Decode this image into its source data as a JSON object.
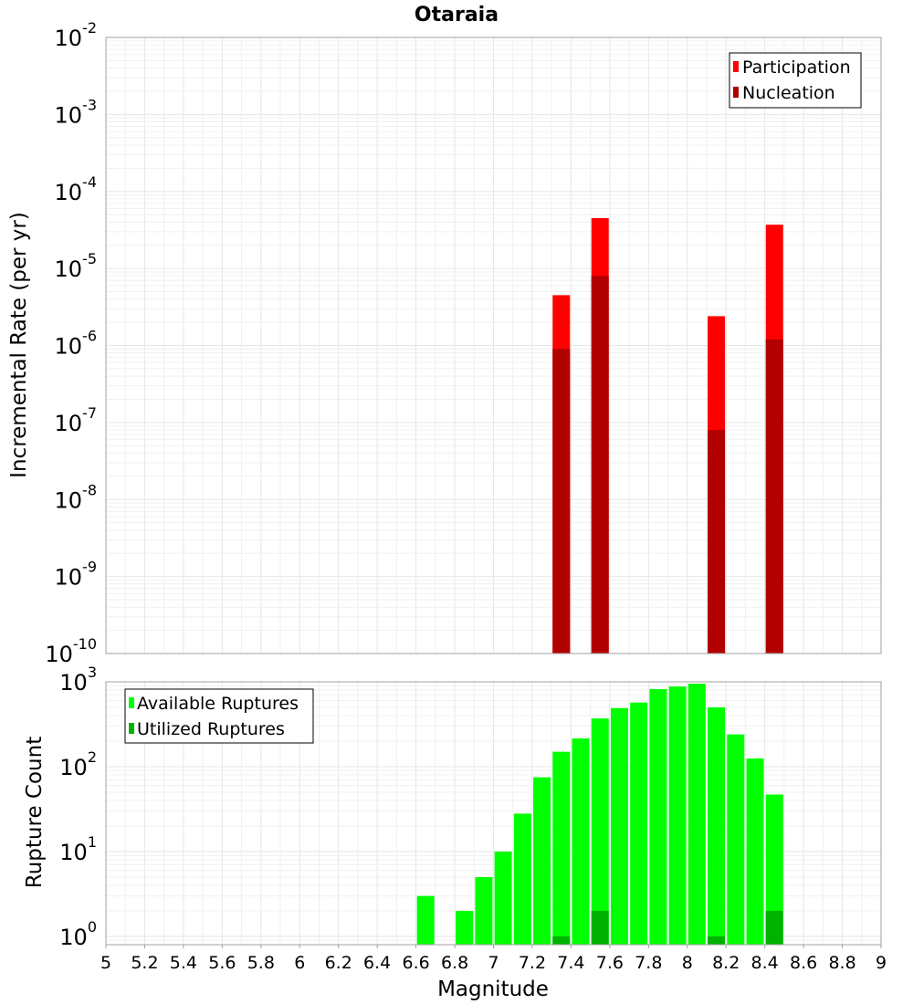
{
  "chart_data": [
    {
      "type": "bar",
      "title": "Otaraia",
      "ylabel": "Incremental Rate (per yr)",
      "xlabel": "",
      "yscale": "log",
      "ylim": [
        1e-10,
        0.01
      ],
      "xlim": [
        5,
        9
      ],
      "y_ticks": [
        {
          "base": "10",
          "exp": "-10"
        },
        {
          "base": "10",
          "exp": "-9"
        },
        {
          "base": "10",
          "exp": "-8"
        },
        {
          "base": "10",
          "exp": "-7"
        },
        {
          "base": "10",
          "exp": "-6"
        },
        {
          "base": "10",
          "exp": "-5"
        },
        {
          "base": "10",
          "exp": "-4"
        },
        {
          "base": "10",
          "exp": "-3"
        },
        {
          "base": "10",
          "exp": "-2"
        }
      ],
      "legend_position": "top-right",
      "grid": true,
      "series": [
        {
          "name": "Participation",
          "color": "#ff0000",
          "points": [
            {
              "x": 7.35,
              "y": 4.5e-06
            },
            {
              "x": 7.55,
              "y": 4.5e-05
            },
            {
              "x": 8.15,
              "y": 2.4e-06
            },
            {
              "x": 8.45,
              "y": 3.7e-05
            }
          ]
        },
        {
          "name": "Nucleation",
          "color": "#b20000",
          "points": [
            {
              "x": 7.35,
              "y": 9e-07
            },
            {
              "x": 7.55,
              "y": 8e-06
            },
            {
              "x": 8.15,
              "y": 8e-08
            },
            {
              "x": 8.45,
              "y": 1.2e-06
            }
          ]
        }
      ]
    },
    {
      "type": "bar",
      "ylabel": "Rupture Count",
      "xlabel": "Magnitude",
      "yscale": "log",
      "ylim": [
        0.8,
        1000
      ],
      "xlim": [
        5,
        9
      ],
      "x_ticks": [
        "5",
        "5.2",
        "5.4",
        "5.6",
        "5.8",
        "6",
        "6.2",
        "6.4",
        "6.6",
        "6.8",
        "7",
        "7.2",
        "7.4",
        "7.6",
        "7.8",
        "8",
        "8.2",
        "8.4",
        "8.6",
        "8.8",
        "9"
      ],
      "y_ticks": [
        {
          "base": "10",
          "exp": "0"
        },
        {
          "base": "10",
          "exp": "1"
        },
        {
          "base": "10",
          "exp": "2"
        },
        {
          "base": "10",
          "exp": "3"
        }
      ],
      "legend_position": "top-left",
      "grid": true,
      "series": [
        {
          "name": "Available Ruptures",
          "color": "#00ff00",
          "points": [
            {
              "x": 6.65,
              "y": 3
            },
            {
              "x": 6.85,
              "y": 2
            },
            {
              "x": 6.95,
              "y": 5
            },
            {
              "x": 7.05,
              "y": 10
            },
            {
              "x": 7.15,
              "y": 28
            },
            {
              "x": 7.25,
              "y": 75
            },
            {
              "x": 7.35,
              "y": 150
            },
            {
              "x": 7.45,
              "y": 215
            },
            {
              "x": 7.55,
              "y": 370
            },
            {
              "x": 7.65,
              "y": 490
            },
            {
              "x": 7.75,
              "y": 570
            },
            {
              "x": 7.85,
              "y": 820
            },
            {
              "x": 7.95,
              "y": 880
            },
            {
              "x": 8.05,
              "y": 950
            },
            {
              "x": 8.15,
              "y": 500
            },
            {
              "x": 8.25,
              "y": 240
            },
            {
              "x": 8.35,
              "y": 125
            },
            {
              "x": 8.45,
              "y": 47
            }
          ]
        },
        {
          "name": "Utilized Ruptures",
          "color": "#00b200",
          "points": [
            {
              "x": 7.35,
              "y": 1
            },
            {
              "x": 7.55,
              "y": 2
            },
            {
              "x": 8.15,
              "y": 1
            },
            {
              "x": 8.45,
              "y": 2
            }
          ]
        }
      ]
    }
  ]
}
